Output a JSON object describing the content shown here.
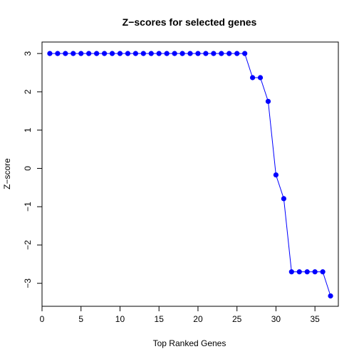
{
  "chart_data": {
    "type": "line",
    "title": "Z−scores for selected genes",
    "xlabel": "Top Ranked Genes",
    "ylabel": "Z−score",
    "xlim": [
      0,
      38
    ],
    "ylim": [
      -3.6,
      3.3
    ],
    "xticks": [
      0,
      5,
      10,
      15,
      20,
      25,
      30,
      35
    ],
    "yticks": [
      -3,
      -2,
      -1,
      0,
      1,
      2,
      3
    ],
    "xtick_labels": [
      "0",
      "5",
      "10",
      "15",
      "20",
      "25",
      "30",
      "35"
    ],
    "ytick_labels": [
      "−3",
      "−2",
      "−1",
      "0",
      "1",
      "2",
      "3"
    ],
    "grid": false,
    "series": [
      {
        "color": "#0000ff",
        "x": [
          1,
          2,
          3,
          4,
          5,
          6,
          7,
          8,
          9,
          10,
          11,
          12,
          13,
          14,
          15,
          16,
          17,
          18,
          19,
          20,
          21,
          22,
          23,
          24,
          25,
          26,
          27,
          28,
          29,
          30,
          31,
          32,
          33,
          34,
          35,
          36,
          37
        ],
        "values": [
          3,
          3,
          3,
          3,
          3,
          3,
          3,
          3,
          3,
          3,
          3,
          3,
          3,
          3,
          3,
          3,
          3,
          3,
          3,
          3,
          3,
          3,
          3,
          3,
          3,
          3,
          2.37,
          2.37,
          1.75,
          -0.17,
          -0.79,
          -2.7,
          -2.7,
          -2.7,
          -2.7,
          -2.7,
          -3.33
        ]
      }
    ]
  }
}
